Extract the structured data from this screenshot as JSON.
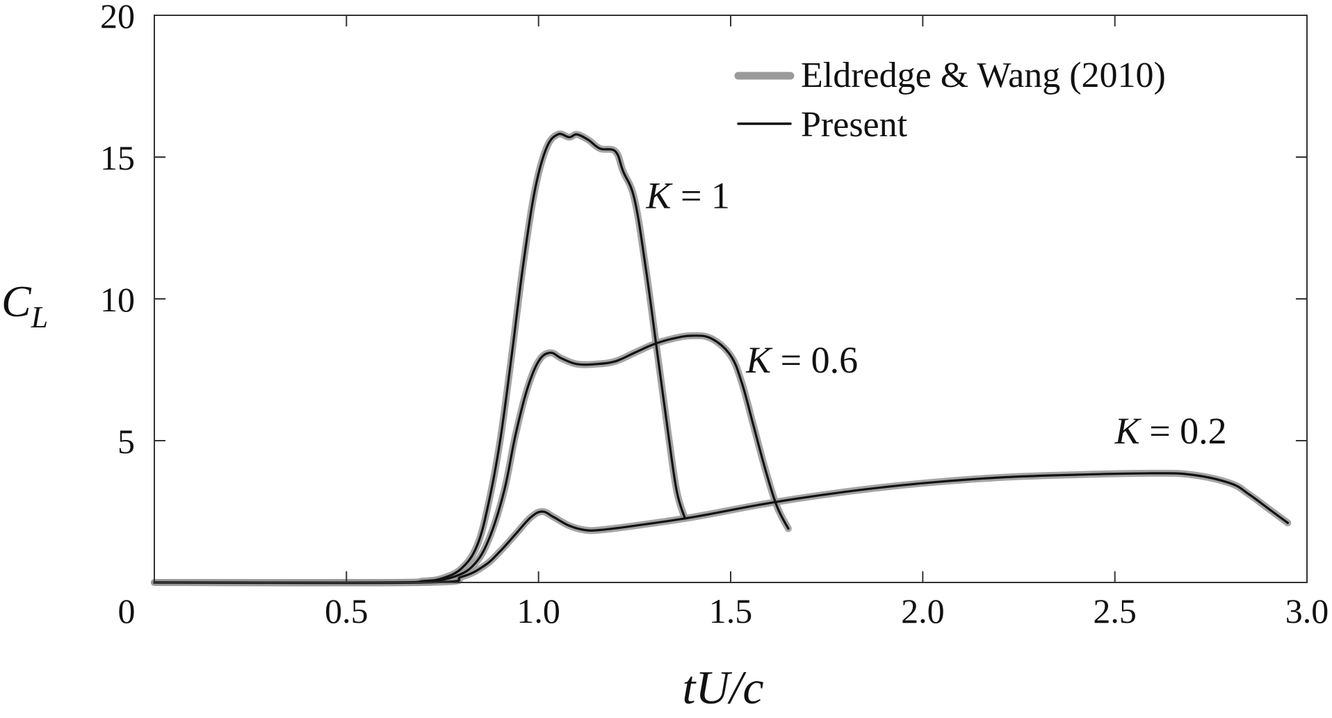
{
  "chart_data": {
    "type": "line",
    "xlabel": "tU/c",
    "ylabel": "C",
    "ylabel_sub": "L",
    "xlim": [
      0,
      3.0
    ],
    "ylim": [
      0,
      20
    ],
    "x_ticks": [
      "0",
      "0.5",
      "1.0",
      "1.5",
      "2.0",
      "2.5",
      "3.0"
    ],
    "x_tick_values": [
      0,
      0.5,
      1.0,
      1.5,
      2.0,
      2.5,
      3.0
    ],
    "y_ticks": [
      "5",
      "10",
      "15",
      "20"
    ],
    "y_tick_values": [
      5,
      10,
      15,
      20
    ],
    "grid": false,
    "legend_position": "top-right",
    "legend": [
      {
        "name": "Eldredge & Wang (2010)",
        "color": "#9a9a9a"
      },
      {
        "name": "Present",
        "color": "#111111"
      }
    ],
    "annotations": [
      {
        "text": "K = 1",
        "x": 1.28,
        "y": 13.2
      },
      {
        "text": "K = 0.6",
        "x": 1.54,
        "y": 7.4
      },
      {
        "text": "K = 0.2",
        "x": 2.5,
        "y": 4.9
      }
    ],
    "series": [
      {
        "case": "K = 1",
        "x": [
          0,
          0.6,
          0.7,
          0.75,
          0.8,
          0.84,
          0.87,
          0.9,
          0.93,
          0.96,
          0.99,
          1.02,
          1.05,
          1.08,
          1.1,
          1.13,
          1.16,
          1.2,
          1.22,
          1.25,
          1.28,
          1.31,
          1.34,
          1.36,
          1.38
        ],
        "y": [
          0,
          0,
          0.05,
          0.15,
          0.5,
          1.3,
          2.8,
          5.0,
          8.0,
          11.2,
          13.8,
          15.3,
          15.8,
          15.7,
          15.8,
          15.6,
          15.3,
          15.2,
          14.5,
          13.5,
          11.0,
          8.0,
          5.0,
          3.2,
          2.3
        ]
      },
      {
        "case": "K = 0.6",
        "x": [
          0,
          0.65,
          0.72,
          0.78,
          0.83,
          0.87,
          0.91,
          0.94,
          0.97,
          1.0,
          1.03,
          1.06,
          1.1,
          1.15,
          1.2,
          1.25,
          1.3,
          1.35,
          1.4,
          1.45,
          1.5,
          1.53,
          1.56,
          1.59,
          1.62,
          1.65
        ],
        "y": [
          0,
          0,
          0.05,
          0.2,
          0.6,
          1.5,
          3.2,
          5.2,
          6.8,
          7.8,
          8.1,
          7.9,
          7.7,
          7.7,
          7.8,
          8.1,
          8.4,
          8.6,
          8.7,
          8.6,
          8.0,
          7.0,
          5.5,
          4.0,
          2.7,
          1.9
        ]
      },
      {
        "case": "K = 0.2",
        "x": [
          0,
          0.7,
          0.8,
          0.86,
          0.9,
          0.94,
          0.98,
          1.01,
          1.04,
          1.08,
          1.12,
          1.16,
          1.25,
          1.4,
          1.6,
          1.8,
          2.0,
          2.2,
          2.4,
          2.6,
          2.7,
          2.8,
          2.85,
          2.9,
          2.95
        ],
        "y": [
          0,
          0,
          0.2,
          0.6,
          1.1,
          1.7,
          2.3,
          2.5,
          2.3,
          2.0,
          1.85,
          1.85,
          2.0,
          2.3,
          2.8,
          3.2,
          3.5,
          3.7,
          3.8,
          3.85,
          3.8,
          3.5,
          3.1,
          2.6,
          2.1
        ]
      }
    ]
  }
}
